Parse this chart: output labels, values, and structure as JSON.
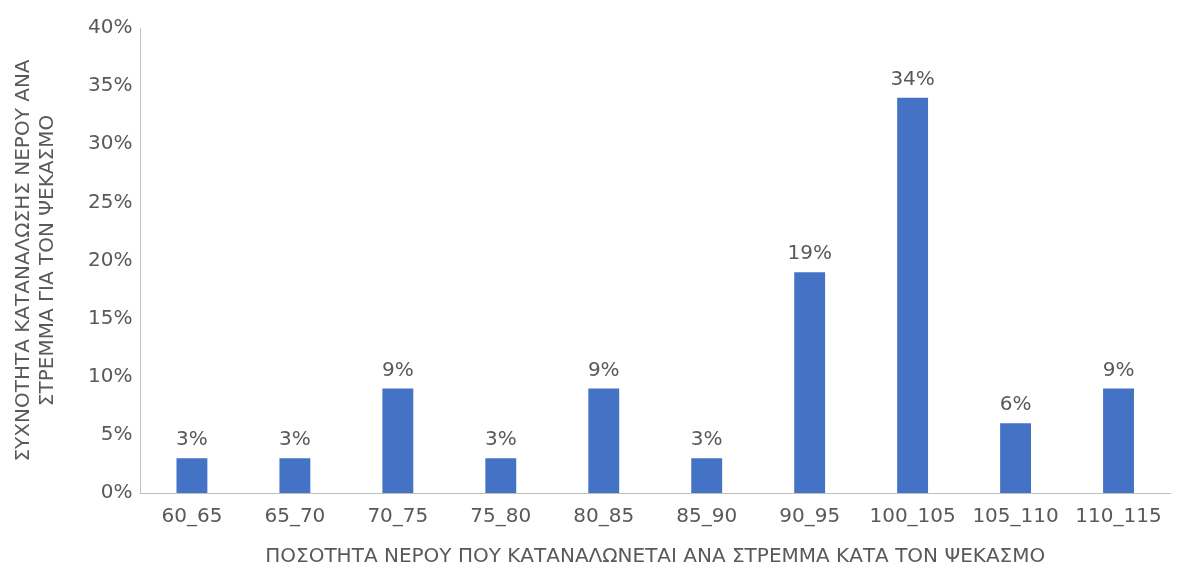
{
  "chart_data": {
    "type": "bar",
    "xlabel": "ΠΟΣΟΤΗΤΑ ΝΕΡΟΥ ΠΟΥ ΚΑΤΑΝΑΛΩΝΕΤΑΙ ΑΝΑ ΣΤΡΕΜΜΑ ΚΑΤΑ ΤΟΝ ΨΕΚΑΣΜΟ",
    "ylabel": "ΣΥΧΝΟΤΗΤΑ ΚΑΤΑΝΑΛΩΣΗΣ ΝΕΡΟΥ ΑΝΑ ΣΤΡΕΜΜΑ ΓΙΑ ΤΟΝ ΨΕΚΑΣΜΟ",
    "categories": [
      "60_65",
      "65_70",
      "70_75",
      "75_80",
      "80_85",
      "85_90",
      "90_95",
      "100_105",
      "105_110",
      "110_115"
    ],
    "values": [
      3,
      3,
      9,
      3,
      9,
      3,
      19,
      34,
      6,
      9
    ],
    "value_labels": [
      "3%",
      "3%",
      "9%",
      "3%",
      "9%",
      "3%",
      "19%",
      "34%",
      "6%",
      "9%"
    ],
    "color": "#4472c4",
    "ylim": [
      0,
      40
    ],
    "yticks": [
      {
        "value": 0,
        "label": "0%"
      },
      {
        "value": 5,
        "label": "5%"
      },
      {
        "value": 10,
        "label": "10%"
      },
      {
        "value": 15,
        "label": "15%"
      },
      {
        "value": 20,
        "label": "20%"
      },
      {
        "value": 25,
        "label": "25%"
      },
      {
        "value": 30,
        "label": "30%"
      },
      {
        "value": 35,
        "label": "35%"
      },
      {
        "value": 40,
        "label": "40%"
      }
    ],
    "grid": false,
    "legend": false
  }
}
